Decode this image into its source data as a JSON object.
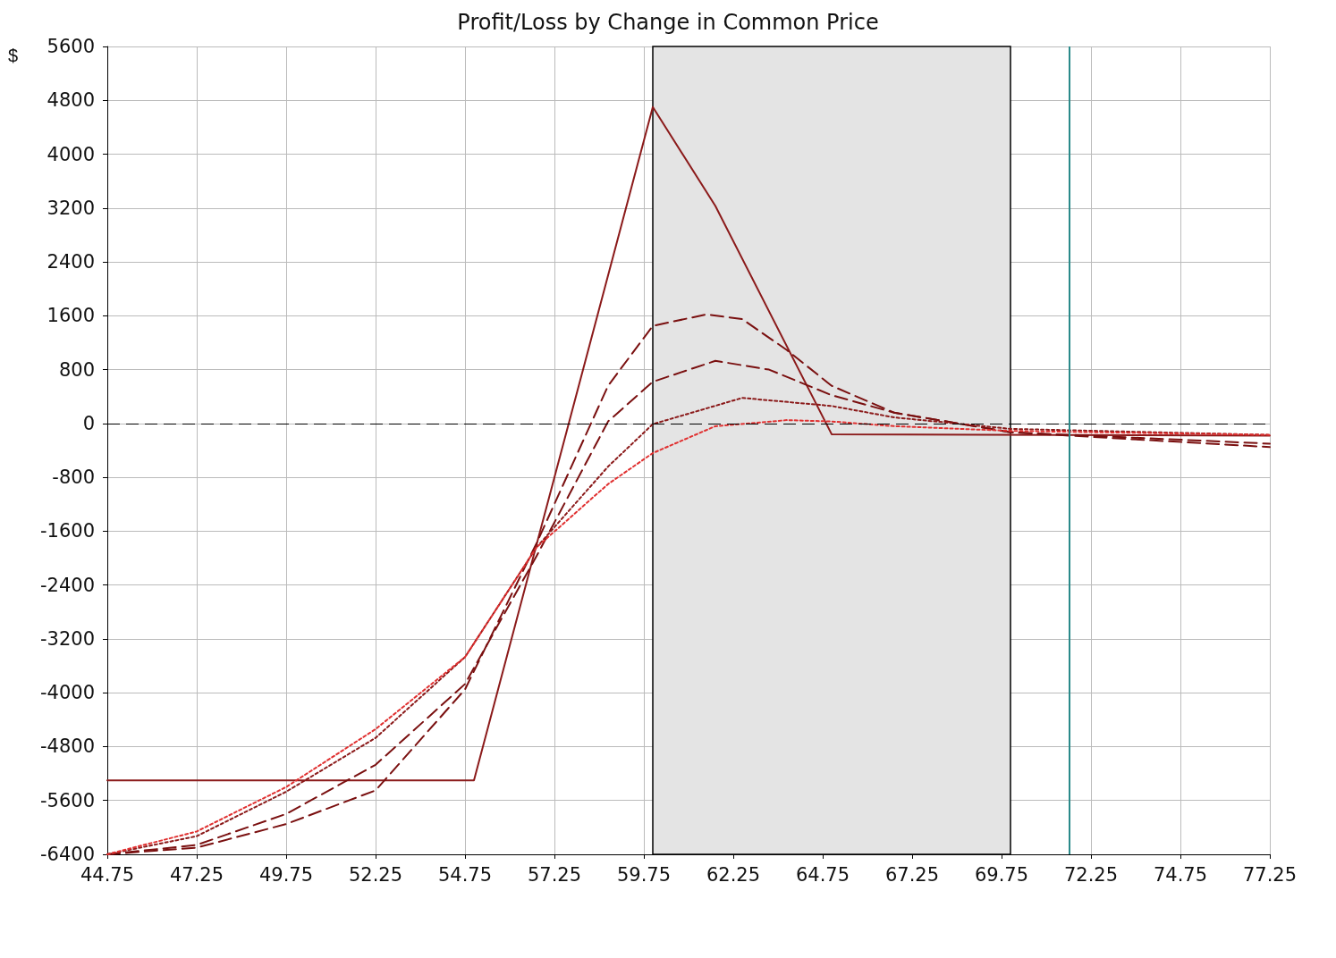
{
  "chart_data": {
    "type": "line",
    "title": "Profit/Loss by Change in Common Price",
    "ylabel": "$",
    "xlim": [
      44.75,
      77.25
    ],
    "xticks": [
      44.75,
      47.25,
      49.75,
      52.25,
      54.75,
      57.25,
      59.75,
      62.25,
      64.75,
      67.25,
      69.75,
      72.25,
      74.75,
      77.25
    ],
    "ylim": [
      -6400,
      5600
    ],
    "yticks": [
      -6400,
      -5600,
      -4800,
      -4000,
      -3200,
      -2400,
      -1600,
      -800,
      0,
      800,
      1600,
      2400,
      3200,
      4000,
      4800,
      5600
    ],
    "grid": true,
    "marker": "none",
    "series": [
      {
        "color": "#8b1a1a",
        "line_style": "solid",
        "x": [
          44.75,
          55.0,
          60.0,
          61.75,
          65.0,
          77.25
        ],
        "values": [
          -5300,
          -5300,
          4700,
          3230,
          -160,
          -180
        ]
      },
      {
        "color": "#7a1010",
        "line_style": "dashed",
        "x": [
          44.75,
          47.25,
          49.75,
          52.25,
          54.75,
          56.75,
          58.75,
          60.0,
          61.5,
          62.5,
          63.75,
          65.0,
          66.75,
          70.0,
          77.25
        ],
        "values": [
          -6400,
          -6300,
          -5950,
          -5450,
          -3950,
          -1780,
          560,
          1450,
          1620,
          1550,
          1090,
          560,
          160,
          -130,
          -300
        ]
      },
      {
        "color": "#7a1010",
        "line_style": "dashed",
        "x": [
          44.75,
          47.25,
          49.75,
          52.25,
          54.75,
          56.75,
          58.75,
          60.0,
          61.75,
          63.25,
          65.0,
          66.75,
          70.0,
          77.25
        ],
        "values": [
          -6400,
          -6260,
          -5800,
          -5070,
          -3870,
          -1970,
          30,
          620,
          930,
          800,
          420,
          160,
          -130,
          -350
        ]
      },
      {
        "color": "#8b1a1a",
        "line_style": "dotted",
        "x": [
          44.75,
          47.25,
          49.75,
          52.25,
          54.75,
          56.75,
          58.75,
          60.0,
          62.5,
          65.0,
          66.75,
          70.0,
          77.25
        ],
        "values": [
          -6400,
          -6130,
          -5470,
          -4670,
          -3470,
          -1840,
          -640,
          -10,
          380,
          260,
          90,
          -80,
          -170
        ]
      },
      {
        "color": "#e03030",
        "line_style": "dotted",
        "x": [
          44.75,
          47.25,
          49.75,
          52.25,
          54.75,
          56.75,
          58.75,
          60.0,
          61.75,
          63.75,
          65.0,
          66.75,
          70.0,
          77.25
        ],
        "values": [
          -6400,
          -6060,
          -5400,
          -4540,
          -3470,
          -1840,
          -900,
          -440,
          -40,
          50,
          30,
          -40,
          -110,
          -170
        ]
      }
    ],
    "ref_lines": [
      {
        "axis": "y",
        "value": 0,
        "color": "#000000",
        "line_style": "dashed"
      },
      {
        "axis": "x",
        "value": 71.65,
        "color": "#2a8a8a",
        "line_style": "solid"
      }
    ],
    "bands": [
      {
        "axis": "x",
        "from": 60,
        "to": 70,
        "color": "#e4e4e4"
      }
    ]
  }
}
